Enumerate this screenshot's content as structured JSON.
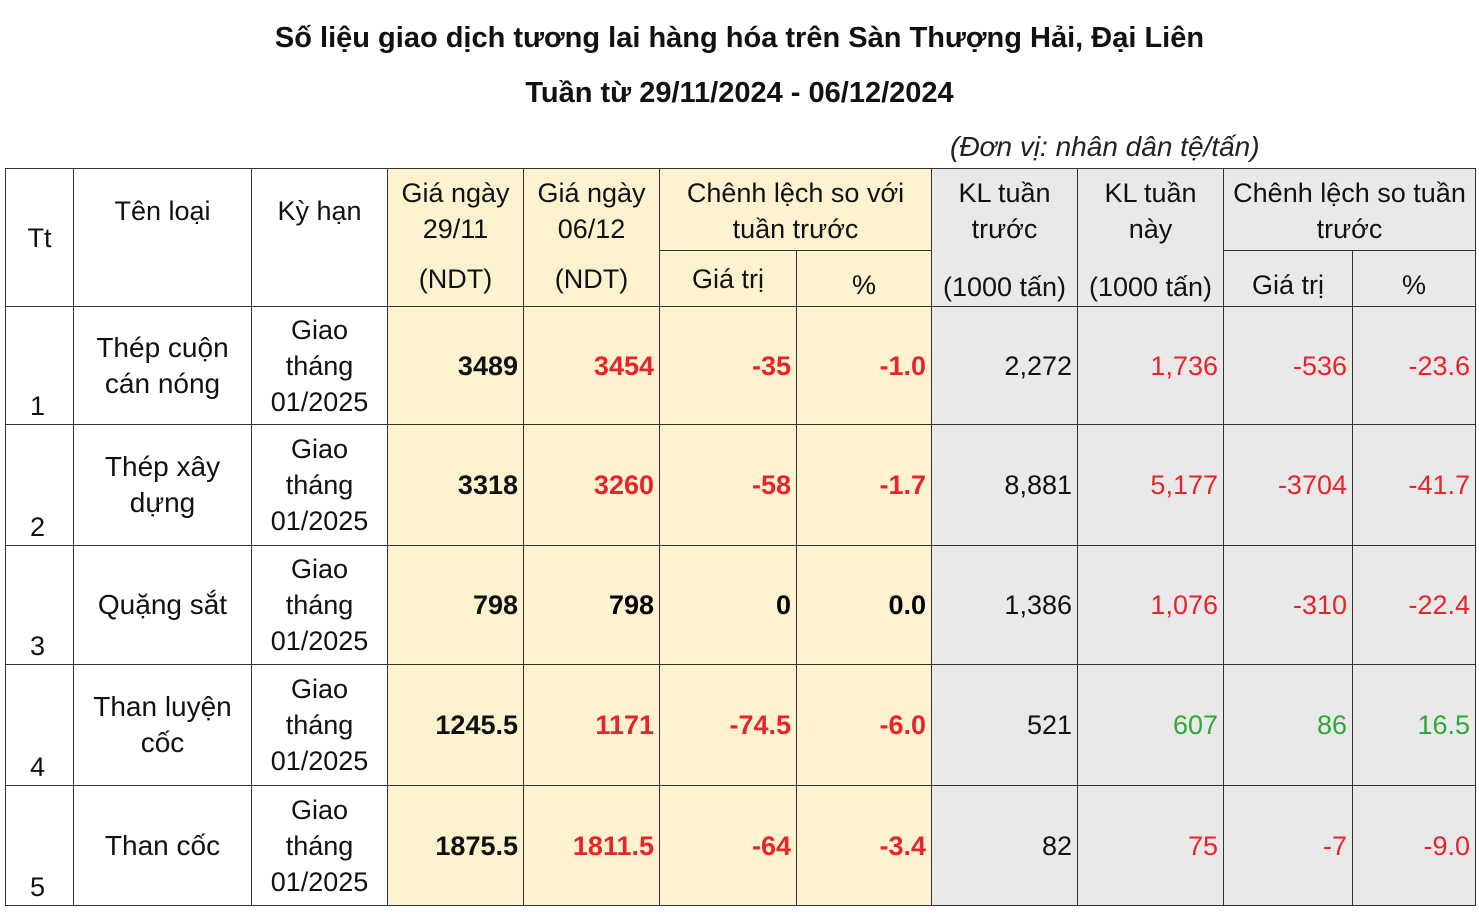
{
  "header": {
    "title": "Số liệu giao dịch tương lai hàng hóa trên Sàn Thượng Hải, Đại Liên",
    "subtitle": "Tuần từ 29/11/2024 - 06/12/2024",
    "unit": "(Đơn vị: nhân dân tệ/tấn)"
  },
  "table": {
    "headers": {
      "tt": "Tt",
      "name": "Tên loại",
      "term": "Kỳ hạn",
      "price1": {
        "label": "Giá ngày 29/11",
        "unit": "(NDT)"
      },
      "price2": {
        "label": "Giá ngày 06/12",
        "unit": "(NDT)"
      },
      "price_change": {
        "label": "Chênh lệch so với tuần trước",
        "value": "Giá trị",
        "pct": "%"
      },
      "vol_prev": {
        "label": "KL tuần trước",
        "unit": "(1000 tấn)"
      },
      "vol_now": {
        "label": "KL tuần này",
        "unit": "(1000 tấn)"
      },
      "vol_change": {
        "label": "Chênh lệch so tuần trước",
        "value": "Giá trị",
        "pct": "%"
      }
    },
    "rows": [
      {
        "tt": "1",
        "name": "Thép cuộn cán nóng",
        "term": "Giao tháng 01/2025",
        "price1": "3489",
        "price2": "3454",
        "diff": "-35",
        "pct": "-1.0",
        "vol_prev": "2,272",
        "vol_now": "1,736",
        "vol_diff": "-536",
        "vol_pct": "-23.6",
        "price_color": "#e8242a",
        "volume_color": "#e8242a"
      },
      {
        "tt": "2",
        "name": "Thép xây dựng",
        "term": "Giao tháng 01/2025",
        "price1": "3318",
        "price2": "3260",
        "diff": "-58",
        "pct": "-1.7",
        "vol_prev": "8,881",
        "vol_now": "5,177",
        "vol_diff": "-3704",
        "vol_pct": "-41.7",
        "price_color": "#e8242a",
        "volume_color": "#e8242a"
      },
      {
        "tt": "3",
        "name": "Quặng sắt",
        "term": "Giao tháng 01/2025",
        "price1": "798",
        "price2": "798",
        "diff": "0",
        "pct": "0.0",
        "vol_prev": "1,386",
        "vol_now": "1,076",
        "vol_diff": "-310",
        "vol_pct": "-22.4",
        "price_color": "#000000",
        "volume_color": "#e8242a"
      },
      {
        "tt": "4",
        "name": "Than luyện cốc",
        "term": "Giao tháng 01/2025",
        "price1": "1245.5",
        "price2": "1171",
        "diff": "-74.5",
        "pct": "-6.0",
        "vol_prev": "521",
        "vol_now": "607",
        "vol_diff": "86",
        "vol_pct": "16.5",
        "price_color": "#e8242a",
        "volume_color": "#2ea836"
      },
      {
        "tt": "5",
        "name": "Than cốc",
        "term": "Giao tháng 01/2025",
        "price1": "1875.5",
        "price2": "1811.5",
        "diff": "-64",
        "pct": "-3.4",
        "vol_prev": "82",
        "vol_now": "75",
        "vol_diff": "-7",
        "vol_pct": "-9.0",
        "price_color": "#e8242a",
        "volume_color": "#e8242a"
      }
    ]
  }
}
